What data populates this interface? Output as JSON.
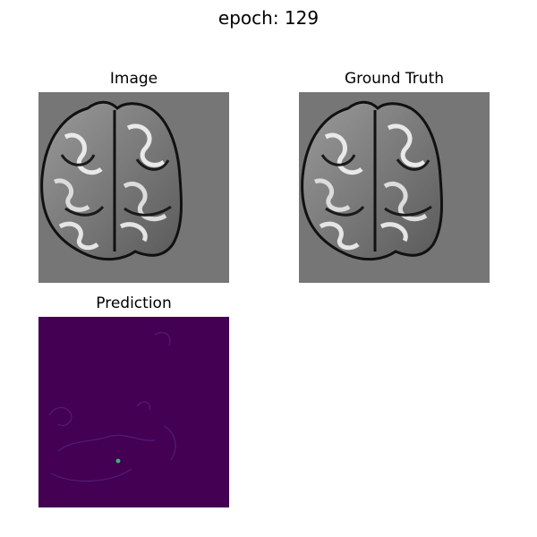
{
  "figure": {
    "suptitle": "epoch: 129"
  },
  "panels": [
    {
      "title": "Image"
    },
    {
      "title": "Ground Truth"
    },
    {
      "title": "Prediction"
    }
  ],
  "colors": {
    "background_gray": "#767676",
    "prediction_background": "#440154",
    "prediction_highlight": "#35b779"
  }
}
